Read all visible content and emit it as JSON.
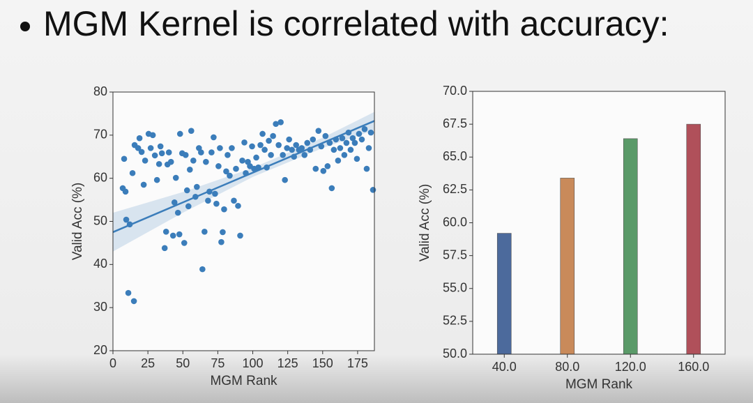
{
  "slide": {
    "title": "MGM Kernel is correlated with accuracy:"
  },
  "chart_data": [
    {
      "type": "scatter",
      "color": "#3b7dba",
      "xlabel": "MGM Rank",
      "ylabel": "Valid Acc (%)",
      "xlim": [
        0,
        187
      ],
      "ylim": [
        20,
        80
      ],
      "xticks": [
        0,
        25,
        50,
        75,
        100,
        125,
        150,
        175
      ],
      "yticks": [
        20,
        30,
        40,
        50,
        60,
        70,
        80
      ],
      "x": [
        7,
        9,
        8,
        9.5,
        12,
        11,
        15,
        14,
        15.5,
        18,
        19,
        20.5,
        22,
        23,
        25.5,
        28.5,
        27,
        30,
        31.5,
        33,
        34,
        35,
        37,
        38,
        39,
        40,
        41.5,
        43,
        44,
        45,
        46.5,
        47.5,
        48,
        49.5,
        51,
        52,
        53,
        54,
        55,
        56,
        57.5,
        59,
        60,
        61.5,
        63,
        64,
        65.5,
        66.5,
        68,
        69,
        70.5,
        72,
        73,
        74,
        75.5,
        76.5,
        77.5,
        78.5,
        79.5,
        81,
        82,
        83.5,
        85,
        86.5,
        88,
        89.5,
        91,
        92.5,
        94,
        95,
        96.5,
        98,
        99.5,
        101,
        102.5,
        104,
        105.5,
        107,
        108.5,
        110,
        111.5,
        113,
        114.5,
        116.5,
        118.5,
        120,
        121.5,
        123,
        124.5,
        126,
        128,
        129.5,
        131,
        133,
        135,
        137,
        139,
        141,
        143,
        145,
        147,
        149,
        150.5,
        152,
        153.5,
        155,
        156.5,
        158,
        159.5,
        161,
        162.5,
        164,
        165.5,
        167,
        168.5,
        170,
        171.5,
        173,
        174.5,
        176,
        178,
        180,
        181.5,
        183,
        184.5,
        186
      ],
      "values": [
        57.7,
        56.9,
        64.5,
        50.4,
        49.3,
        33.4,
        31.5,
        61.2,
        67.7,
        67,
        69.3,
        66.1,
        58.5,
        64.1,
        70.3,
        70,
        67,
        65.3,
        59.6,
        63.3,
        67.4,
        65.8,
        43.8,
        47.6,
        63.2,
        66,
        63.8,
        46.7,
        54.4,
        60.1,
        52,
        47,
        70.3,
        65.8,
        45,
        65.4,
        57.2,
        53.5,
        62,
        71,
        64.1,
        55.7,
        58,
        67,
        66,
        38.9,
        47.6,
        63.8,
        54.8,
        56.9,
        66,
        69.5,
        56.4,
        54.1,
        62.8,
        67,
        45.2,
        47.5,
        52.8,
        61.6,
        65.4,
        60.6,
        67,
        54.8,
        62.2,
        53.6,
        46.7,
        64.1,
        68.3,
        61.2,
        63.8,
        62.8,
        67.4,
        62.2,
        64.8,
        62.5,
        67.7,
        70.3,
        66.6,
        62.5,
        68.7,
        65.4,
        69.8,
        72.6,
        67.7,
        73,
        65.4,
        59.6,
        67,
        69,
        66.6,
        65,
        67.7,
        66.6,
        67,
        65.4,
        68.2,
        66.6,
        69,
        62.2,
        71,
        67.4,
        61.7,
        69.8,
        62.8,
        68.2,
        57.7,
        66.6,
        69,
        64.1,
        67,
        69.3,
        65.4,
        68.2,
        70.6,
        66.6,
        69.3,
        68.2,
        64.5,
        70.3,
        69,
        71.4,
        62.2,
        67,
        70.6,
        57.3
      ],
      "trend": {
        "x": [
          0,
          187
        ],
        "values": [
          47.5,
          73.3
        ]
      },
      "band": {
        "x": [
          0,
          50,
          100,
          150,
          187
        ],
        "lower": [
          43,
          52,
          60.3,
          67,
          71.2
        ],
        "upper": [
          52,
          56.8,
          62.4,
          69.4,
          75.4
        ]
      }
    },
    {
      "type": "bar",
      "xlabel": "MGM Rank",
      "ylabel": "Valid Acc (%)",
      "categories": [
        "40.0",
        "80.0",
        "120.0",
        "160.0"
      ],
      "values": [
        59.2,
        63.4,
        66.4,
        67.5
      ],
      "colors": [
        "#4c6a9c",
        "#c98a5a",
        "#5a9a68",
        "#b0505a"
      ],
      "ylim": [
        50,
        70
      ],
      "yticks": [
        {
          "value": 50,
          "label": "50.0"
        },
        {
          "value": 52.5,
          "label": "52.5"
        },
        {
          "value": 55,
          "label": "55.0"
        },
        {
          "value": 57.5,
          "label": "57.5"
        },
        {
          "value": 60,
          "label": "60.0"
        },
        {
          "value": 62.5,
          "label": "62.5"
        },
        {
          "value": 65,
          "label": "65.0"
        },
        {
          "value": 67.5,
          "label": "67.5"
        },
        {
          "value": 70,
          "label": "70.0"
        }
      ]
    }
  ]
}
